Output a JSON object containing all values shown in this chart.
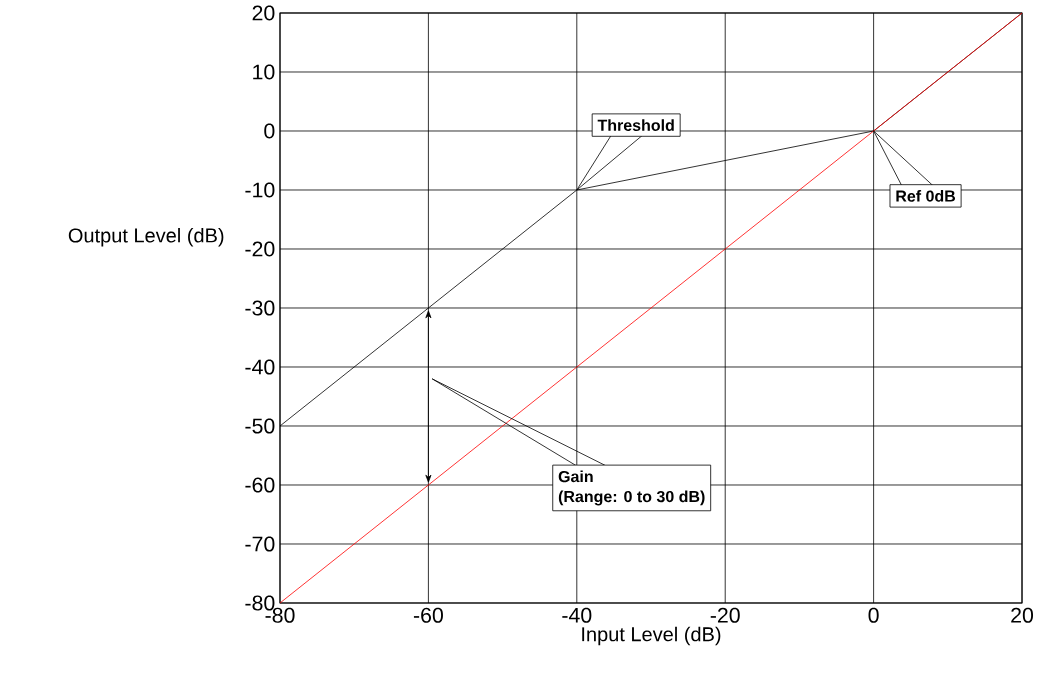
{
  "chart_data": {
    "type": "line",
    "xlabel": "Input Level (dB)",
    "ylabel": "Output Level (dB)",
    "xlim": [
      -80,
      20
    ],
    "ylim": [
      -80,
      20
    ],
    "xticks": [
      -80,
      -60,
      -40,
      -20,
      0,
      20
    ],
    "yticks": [
      -80,
      -70,
      -60,
      -50,
      -40,
      -30,
      -20,
      -10,
      0,
      10,
      20
    ],
    "grid": true,
    "marker": "none",
    "line_style": "solid",
    "series": [
      {
        "color": "#000000",
        "x": [
          -80,
          -40,
          0,
          20
        ],
        "values": [
          -50,
          -10,
          0,
          20
        ]
      },
      {
        "color": "#ff0000",
        "x": [
          -80,
          20
        ],
        "values": [
          -80,
          20
        ]
      }
    ],
    "annotations": [
      "Threshold",
      "Ref 0dB",
      "Gain",
      "(Range: 0 to 30 dB)"
    ]
  }
}
